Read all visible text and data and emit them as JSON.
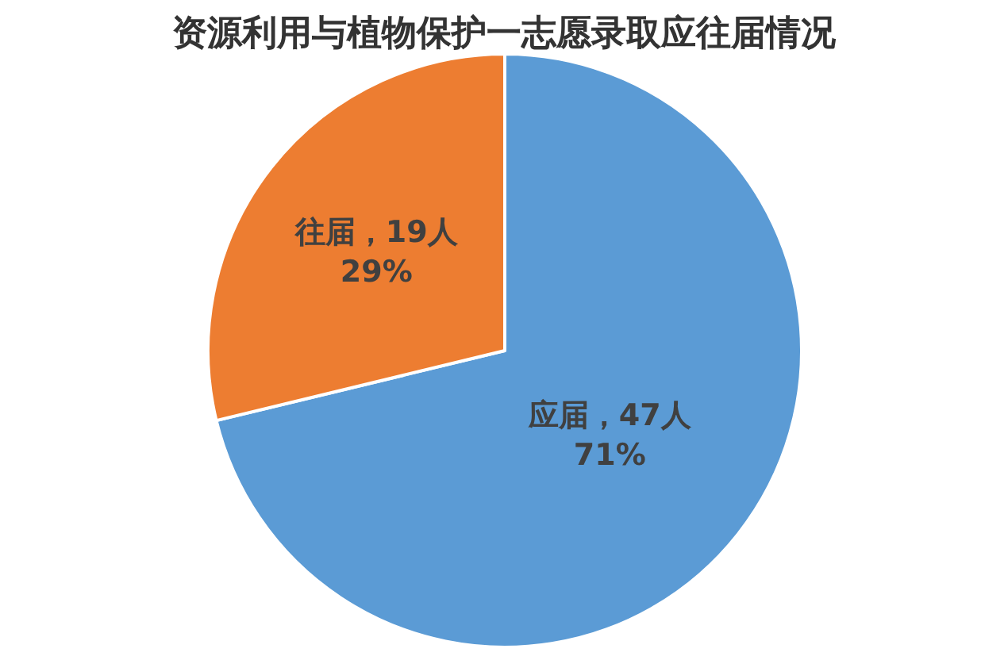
{
  "chart_data": {
    "type": "pie",
    "title": "资源利用与植物保护一志愿录取应往届情况",
    "categories": [
      "应届",
      "往届"
    ],
    "values": [
      47,
      19
    ],
    "colors": [
      "#5b9bd5",
      "#ed7d31"
    ],
    "value_labels": [
      "，47人\n71%",
      "，19人\n29%"
    ]
  }
}
